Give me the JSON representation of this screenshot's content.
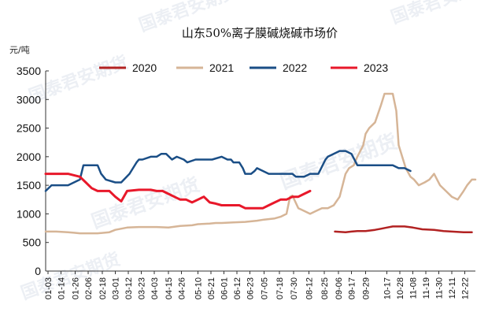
{
  "chart_data": {
    "type": "line",
    "title": "山东50%离子膜碱烧碱市场价",
    "unit_label": "元/吨",
    "ylim": [
      0,
      3500
    ],
    "yticks": [
      0,
      500,
      1000,
      1500,
      2000,
      2500,
      3000,
      3500
    ],
    "xlim": [
      1,
      365
    ],
    "x_tick_labels": [
      "01-03",
      "01-14",
      "01-26",
      "02-06",
      "02-18",
      "03-01",
      "03-12",
      "03-23",
      "04-03",
      "04-15",
      "04-26",
      "05-10",
      "05-21",
      "06-01",
      "06-12",
      "06-23",
      "07-05",
      "07-18",
      "07-30",
      "08-12",
      "08-25",
      "09-06",
      "09-17",
      "09-29",
      "10-17",
      "10-28",
      "11-08",
      "11-19",
      "11-30",
      "12-11",
      "12-22"
    ],
    "x_tick_days": [
      3,
      14,
      26,
      37,
      49,
      60,
      71,
      82,
      93,
      105,
      116,
      130,
      141,
      152,
      163,
      174,
      186,
      199,
      211,
      224,
      237,
      249,
      260,
      272,
      290,
      301,
      312,
      323,
      334,
      345,
      356
    ],
    "legend_position": "top",
    "grid": false,
    "series": [
      {
        "name": "2020",
        "color": "#b22222",
        "x": [
          246,
          255,
          260,
          265,
          272,
          280,
          285,
          290,
          295,
          300,
          305,
          312,
          320,
          330,
          338,
          345,
          355,
          362
        ],
        "y": [
          690,
          680,
          690,
          700,
          700,
          720,
          740,
          760,
          780,
          780,
          780,
          760,
          730,
          720,
          700,
          690,
          680,
          680
        ]
      },
      {
        "name": "2021",
        "color": "#d6b597",
        "x": [
          1,
          10,
          20,
          25,
          30,
          40,
          45,
          55,
          60,
          70,
          80,
          90,
          95,
          105,
          115,
          125,
          130,
          140,
          145,
          150,
          160,
          170,
          180,
          186,
          195,
          200,
          205,
          208,
          210,
          215,
          220,
          225,
          230,
          235,
          240,
          245,
          250,
          255,
          258,
          262,
          265,
          270,
          272,
          275,
          280,
          285,
          288,
          290,
          293,
          295,
          298,
          300,
          303,
          306,
          310,
          313,
          317,
          322,
          326,
          330,
          335,
          340,
          345,
          350,
          355,
          358,
          362,
          365
        ],
        "y": [
          690,
          690,
          680,
          670,
          660,
          660,
          660,
          680,
          720,
          760,
          770,
          770,
          770,
          760,
          790,
          800,
          820,
          830,
          840,
          840,
          850,
          860,
          880,
          900,
          920,
          950,
          1000,
          1300,
          1320,
          1100,
          1050,
          1000,
          1050,
          1100,
          1100,
          1150,
          1300,
          1700,
          1800,
          1850,
          2000,
          2200,
          2400,
          2500,
          2600,
          2900,
          3100,
          3100,
          3100,
          3100,
          2800,
          2200,
          2000,
          1800,
          1650,
          1600,
          1500,
          1550,
          1600,
          1700,
          1500,
          1400,
          1300,
          1250,
          1400,
          1500,
          1600,
          1600
        ]
      },
      {
        "name": "2022",
        "color": "#1a4e86",
        "x": [
          1,
          6,
          12,
          20,
          30,
          33,
          40,
          45,
          48,
          52,
          60,
          65,
          72,
          75,
          78,
          80,
          83,
          90,
          95,
          99,
          103,
          108,
          112,
          118,
          121,
          128,
          135,
          142,
          150,
          155,
          158,
          160,
          165,
          168,
          170,
          172,
          175,
          178,
          180,
          190,
          200,
          210,
          213,
          220,
          225,
          228,
          232,
          238,
          240,
          245,
          250,
          255,
          260,
          265,
          270,
          275,
          280,
          285,
          290,
          295,
          300,
          305,
          310
        ],
        "y": [
          1400,
          1500,
          1500,
          1500,
          1600,
          1850,
          1850,
          1850,
          1700,
          1600,
          1550,
          1550,
          1700,
          1800,
          1900,
          1950,
          1950,
          2000,
          2000,
          2050,
          2050,
          1950,
          2000,
          1950,
          1900,
          1950,
          1950,
          1950,
          2000,
          1950,
          1950,
          1900,
          1900,
          1800,
          1700,
          1700,
          1700,
          1750,
          1800,
          1700,
          1700,
          1700,
          1650,
          1650,
          1700,
          1700,
          1700,
          1950,
          2000,
          2050,
          2100,
          2100,
          2050,
          1850,
          1850,
          1850,
          1850,
          1850,
          1850,
          1850,
          1800,
          1800,
          1750
        ]
      },
      {
        "name": "2023",
        "color": "#e8182a",
        "x": [
          1,
          10,
          20,
          30,
          35,
          40,
          45,
          50,
          55,
          60,
          65,
          70,
          80,
          90,
          95,
          100,
          105,
          110,
          115,
          120,
          125,
          130,
          135,
          140,
          145,
          150,
          155,
          160,
          165,
          170,
          175,
          180,
          185,
          190,
          195,
          200,
          205,
          210,
          215,
          220,
          225
        ],
        "y": [
          1700,
          1700,
          1700,
          1650,
          1550,
          1450,
          1400,
          1400,
          1400,
          1300,
          1220,
          1400,
          1420,
          1420,
          1400,
          1400,
          1350,
          1300,
          1250,
          1250,
          1200,
          1250,
          1300,
          1200,
          1180,
          1150,
          1150,
          1150,
          1150,
          1100,
          1100,
          1100,
          1100,
          1150,
          1200,
          1250,
          1250,
          1300,
          1300,
          1350,
          1400
        ]
      }
    ]
  }
}
